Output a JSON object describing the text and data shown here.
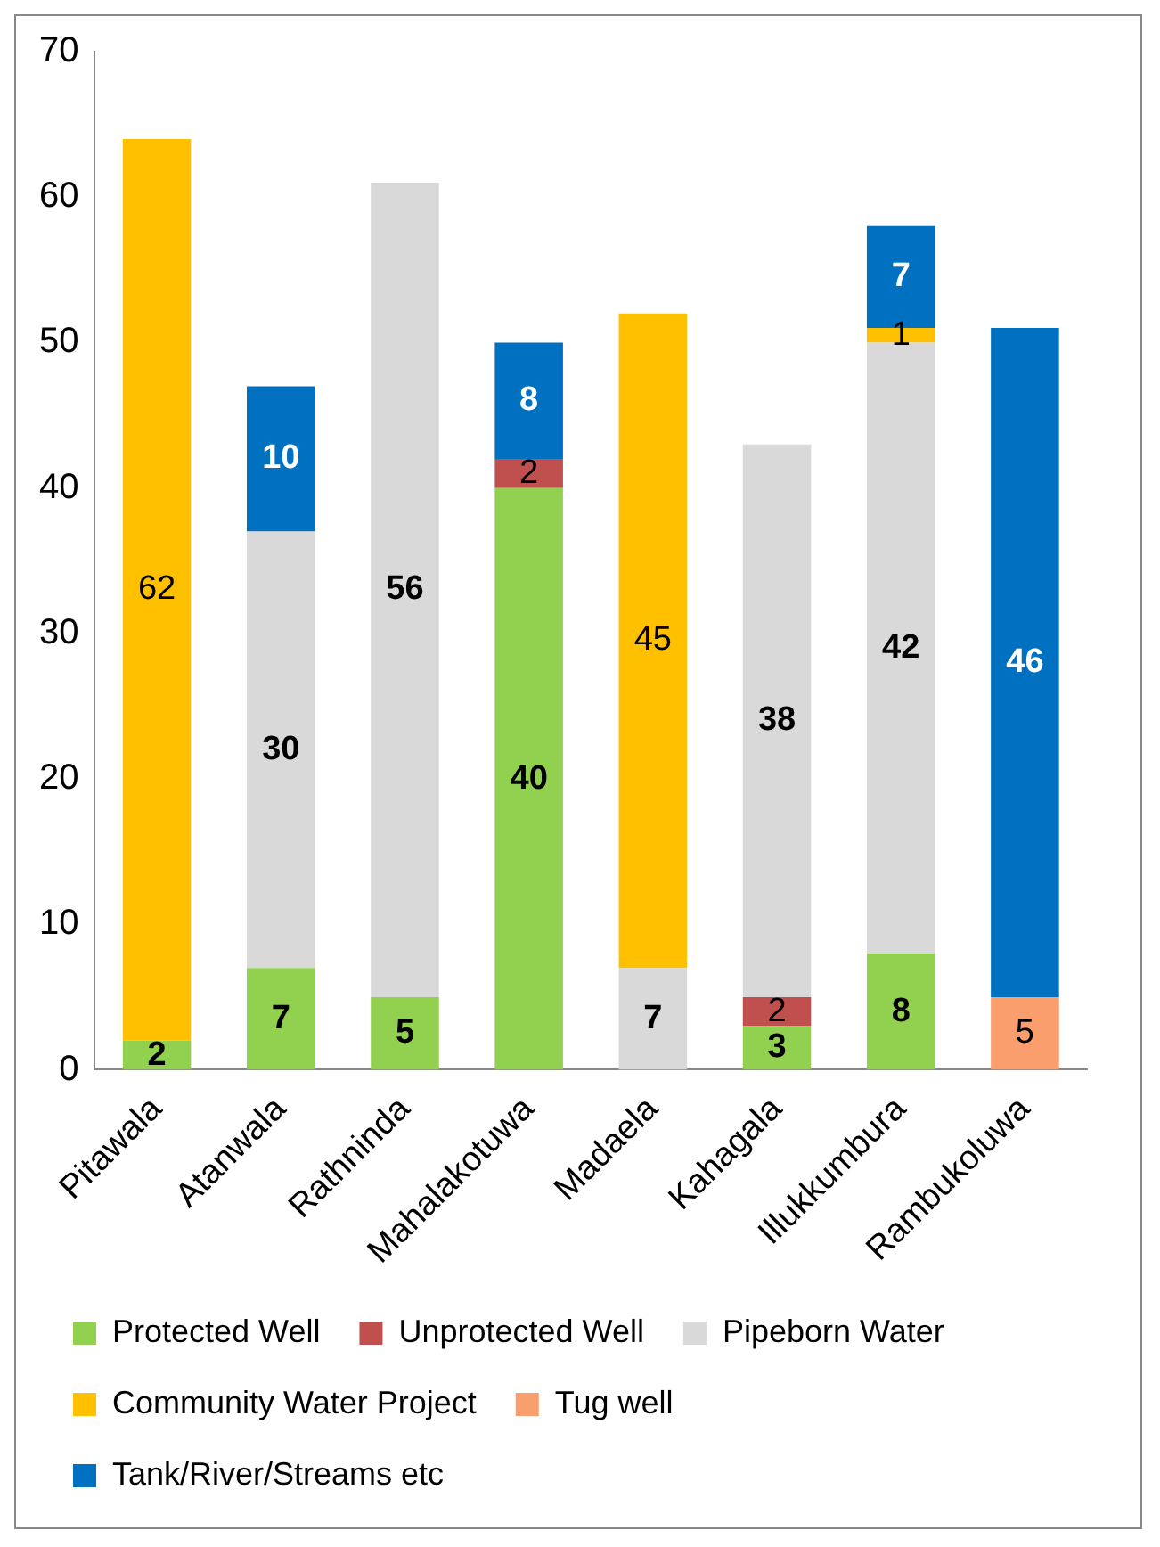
{
  "chart_data": {
    "type": "bar",
    "stacked": true,
    "data_labels": true,
    "grid": false,
    "legend": "bottom",
    "categories": [
      "Pitawala",
      "Atanwala",
      "Rathninda",
      "Mahalakotuwa",
      "Madaela",
      "Kahagala",
      "Illukkumbura",
      "Rambukoluwa"
    ],
    "series": [
      {
        "name": "Protected Well",
        "color": "#92d050",
        "values": [
          2,
          7,
          5,
          40,
          null,
          3,
          8,
          null
        ]
      },
      {
        "name": "Unprotected Well",
        "color": "#c0504d",
        "values": [
          null,
          null,
          null,
          2,
          null,
          2,
          null,
          null
        ]
      },
      {
        "name": "Pipeborn Water",
        "color": "#d9d9d9",
        "values": [
          null,
          30,
          56,
          null,
          7,
          38,
          42,
          null
        ]
      },
      {
        "name": "Community Water Project",
        "color": "#ffc000",
        "values": [
          62,
          null,
          null,
          null,
          45,
          null,
          1,
          null
        ]
      },
      {
        "name": "Tug well",
        "color": "#fa9e6e",
        "values": [
          null,
          null,
          null,
          null,
          null,
          null,
          null,
          5
        ]
      },
      {
        "name": "Tank/River/Streams etc",
        "color": "#0070c0",
        "values": [
          null,
          10,
          null,
          8,
          null,
          null,
          7,
          46
        ]
      }
    ],
    "ylim": [
      0,
      70
    ],
    "yticks": [
      0,
      10,
      20,
      30,
      40,
      50,
      60,
      70
    ]
  }
}
